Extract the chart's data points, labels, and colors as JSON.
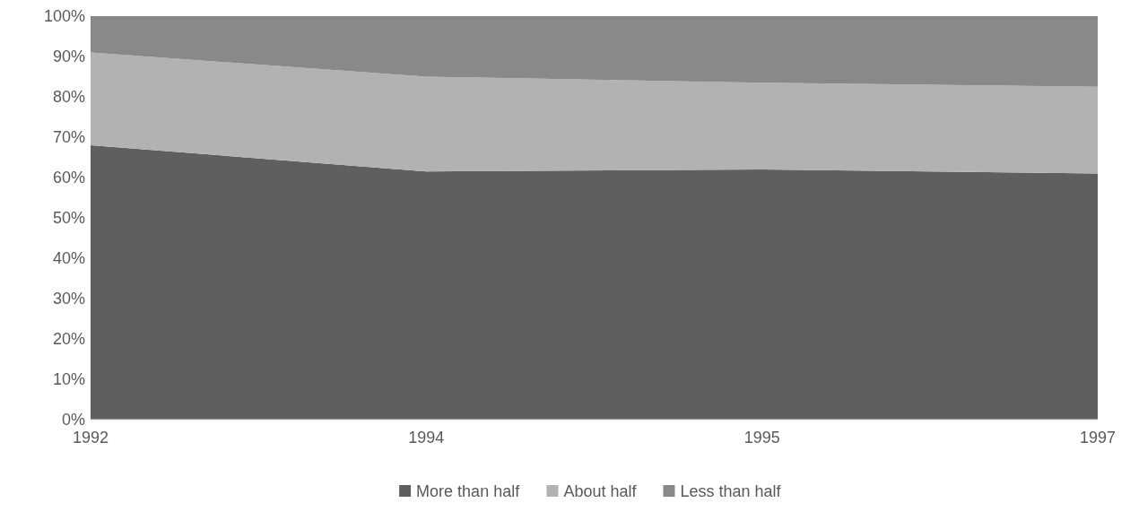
{
  "chart_data": {
    "type": "area",
    "stacked": true,
    "categories": [
      "1992",
      "1994",
      "1995",
      "1997"
    ],
    "series": [
      {
        "name": "More than half",
        "color": "#5f5f5f",
        "values": [
          68,
          61.5,
          62,
          61
        ]
      },
      {
        "name": "About half",
        "color": "#b2b2b2",
        "values": [
          23,
          23.5,
          21.5,
          21.5
        ]
      },
      {
        "name": "Less than half",
        "color": "#898989",
        "values": [
          9,
          15,
          16.5,
          17.5
        ]
      }
    ],
    "ylim": [
      0,
      100
    ],
    "yticks": [
      {
        "value": 0,
        "label": "0%"
      },
      {
        "value": 10,
        "label": "10%"
      },
      {
        "value": 20,
        "label": "20%"
      },
      {
        "value": 30,
        "label": "30%"
      },
      {
        "value": 40,
        "label": "40%"
      },
      {
        "value": 50,
        "label": "50%"
      },
      {
        "value": 60,
        "label": "60%"
      },
      {
        "value": 70,
        "label": "70%"
      },
      {
        "value": 80,
        "label": "80%"
      },
      {
        "value": 90,
        "label": "90%"
      },
      {
        "value": 100,
        "label": "100%"
      }
    ],
    "legend": "bottom"
  }
}
